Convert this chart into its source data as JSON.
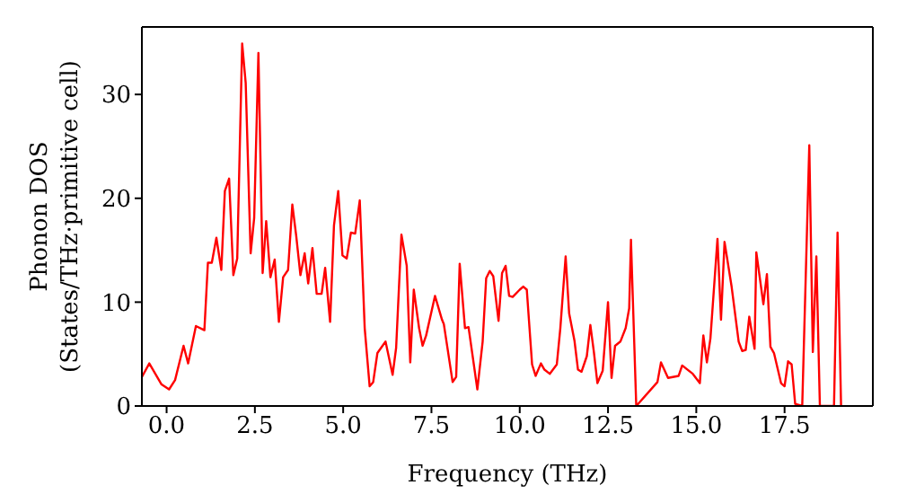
{
  "chart_data": {
    "type": "line",
    "xlabel": "Frequency (THz)",
    "ylabel": "Phonon DOS\n(States/THz·primitive cell)",
    "x": [
      -0.7,
      -0.49,
      -0.15,
      0.07,
      0.24,
      0.48,
      0.61,
      0.83,
      1.07,
      1.17,
      1.28,
      1.41,
      1.55,
      1.65,
      1.77,
      1.89,
      2.0,
      2.14,
      2.24,
      2.38,
      2.48,
      2.6,
      2.72,
      2.82,
      2.94,
      3.06,
      3.18,
      3.3,
      3.44,
      3.56,
      3.67,
      3.79,
      3.91,
      4.01,
      4.13,
      4.25,
      4.39,
      4.49,
      4.63,
      4.74,
      4.86,
      4.98,
      5.1,
      5.22,
      5.34,
      5.47,
      5.61,
      5.75,
      5.85,
      5.97,
      6.2,
      6.4,
      6.5,
      6.65,
      6.8,
      6.9,
      7.0,
      7.15,
      7.25,
      7.35,
      7.6,
      7.8,
      7.85,
      8.1,
      8.2,
      8.3,
      8.45,
      8.55,
      8.65,
      8.8,
      8.95,
      9.05,
      9.15,
      9.25,
      9.4,
      9.5,
      9.6,
      9.7,
      9.8,
      10.0,
      10.1,
      10.2,
      10.35,
      10.45,
      10.6,
      10.7,
      10.85,
      11.05,
      11.15,
      11.3,
      11.4,
      11.55,
      11.65,
      11.75,
      11.9,
      12.0,
      12.1,
      12.2,
      12.35,
      12.5,
      12.6,
      12.7,
      12.85,
      13.0,
      13.1,
      13.15,
      13.3,
      13.9,
      14.0,
      14.2,
      14.5,
      14.6,
      14.9,
      15.1,
      15.2,
      15.3,
      15.4,
      15.6,
      15.7,
      15.8,
      16.0,
      16.2,
      16.3,
      16.4,
      16.5,
      16.65,
      16.7,
      16.9,
      17.0,
      17.1,
      17.2,
      17.4,
      17.5,
      17.6,
      17.7,
      17.8,
      18.0,
      18.2,
      18.3,
      18.4,
      18.5,
      18.9,
      19.0,
      19.1
    ],
    "series": [
      {
        "color": "#ff0000",
        "values": [
          2.8,
          4.1,
          2.1,
          1.6,
          2.5,
          5.8,
          4.1,
          7.7,
          7.3,
          13.8,
          13.8,
          16.2,
          13.1,
          20.7,
          21.9,
          12.6,
          14.2,
          34.9,
          31.1,
          14.7,
          18.1,
          34,
          12.8,
          17.8,
          12.4,
          14.1,
          8.1,
          12.4,
          13.1,
          19.4,
          16.4,
          12.6,
          14.7,
          11.8,
          15.2,
          10.8,
          10.8,
          13.3,
          8.1,
          17.4,
          20.7,
          14.5,
          14.2,
          16.7,
          16.6,
          19.8,
          7.5,
          1.9,
          2.3,
          5.1,
          6.2,
          3,
          5.6,
          16.5,
          13.5,
          4.2,
          11.2,
          7.5,
          5.8,
          6.8,
          10.6,
          8.3,
          7.9,
          2.3,
          2.8,
          13.7,
          7.5,
          7.6,
          5.2,
          1.6,
          6.2,
          12.3,
          13,
          12.5,
          8.2,
          12.8,
          13.5,
          10.6,
          10.5,
          11.2,
          11.5,
          11.2,
          4,
          2.9,
          4.1,
          3.5,
          3.1,
          4,
          7.5,
          14.4,
          8.9,
          6.3,
          3.5,
          3.3,
          4.8,
          7.8,
          5.2,
          2.2,
          3.4,
          10,
          2.7,
          5.8,
          6.2,
          7.5,
          9.4,
          16,
          0,
          2.3,
          4.2,
          2.7,
          2.9,
          3.9,
          3.1,
          2.2,
          6.8,
          4.2,
          6.5,
          16.1,
          8.3,
          15.8,
          11.5,
          6.2,
          5.3,
          5.4,
          8.6,
          5.5,
          14.8,
          9.8,
          12.7,
          5.7,
          5.1,
          2.2,
          1.9,
          4.3,
          4,
          0.2,
          0,
          25.1,
          5.2,
          14.4,
          0,
          0,
          16.7,
          0
        ]
      }
    ],
    "xlim": [
      -0.7,
      20.0
    ],
    "xticks": [
      {
        "value": 0,
        "label": "0.0"
      },
      {
        "value": 2.5,
        "label": "2.5"
      },
      {
        "value": 5,
        "label": "5.0"
      },
      {
        "value": 7.5,
        "label": "7.5"
      },
      {
        "value": 10,
        "label": "10.0"
      },
      {
        "value": 12.5,
        "label": "12.5"
      },
      {
        "value": 15,
        "label": "15.0"
      },
      {
        "value": 17.5,
        "label": "17.5"
      }
    ],
    "ylim": [
      0,
      36.5
    ],
    "yticks": [
      0,
      10,
      20,
      30
    ],
    "grid": false,
    "marker": "none",
    "line_style": "solid",
    "legend": false
  }
}
